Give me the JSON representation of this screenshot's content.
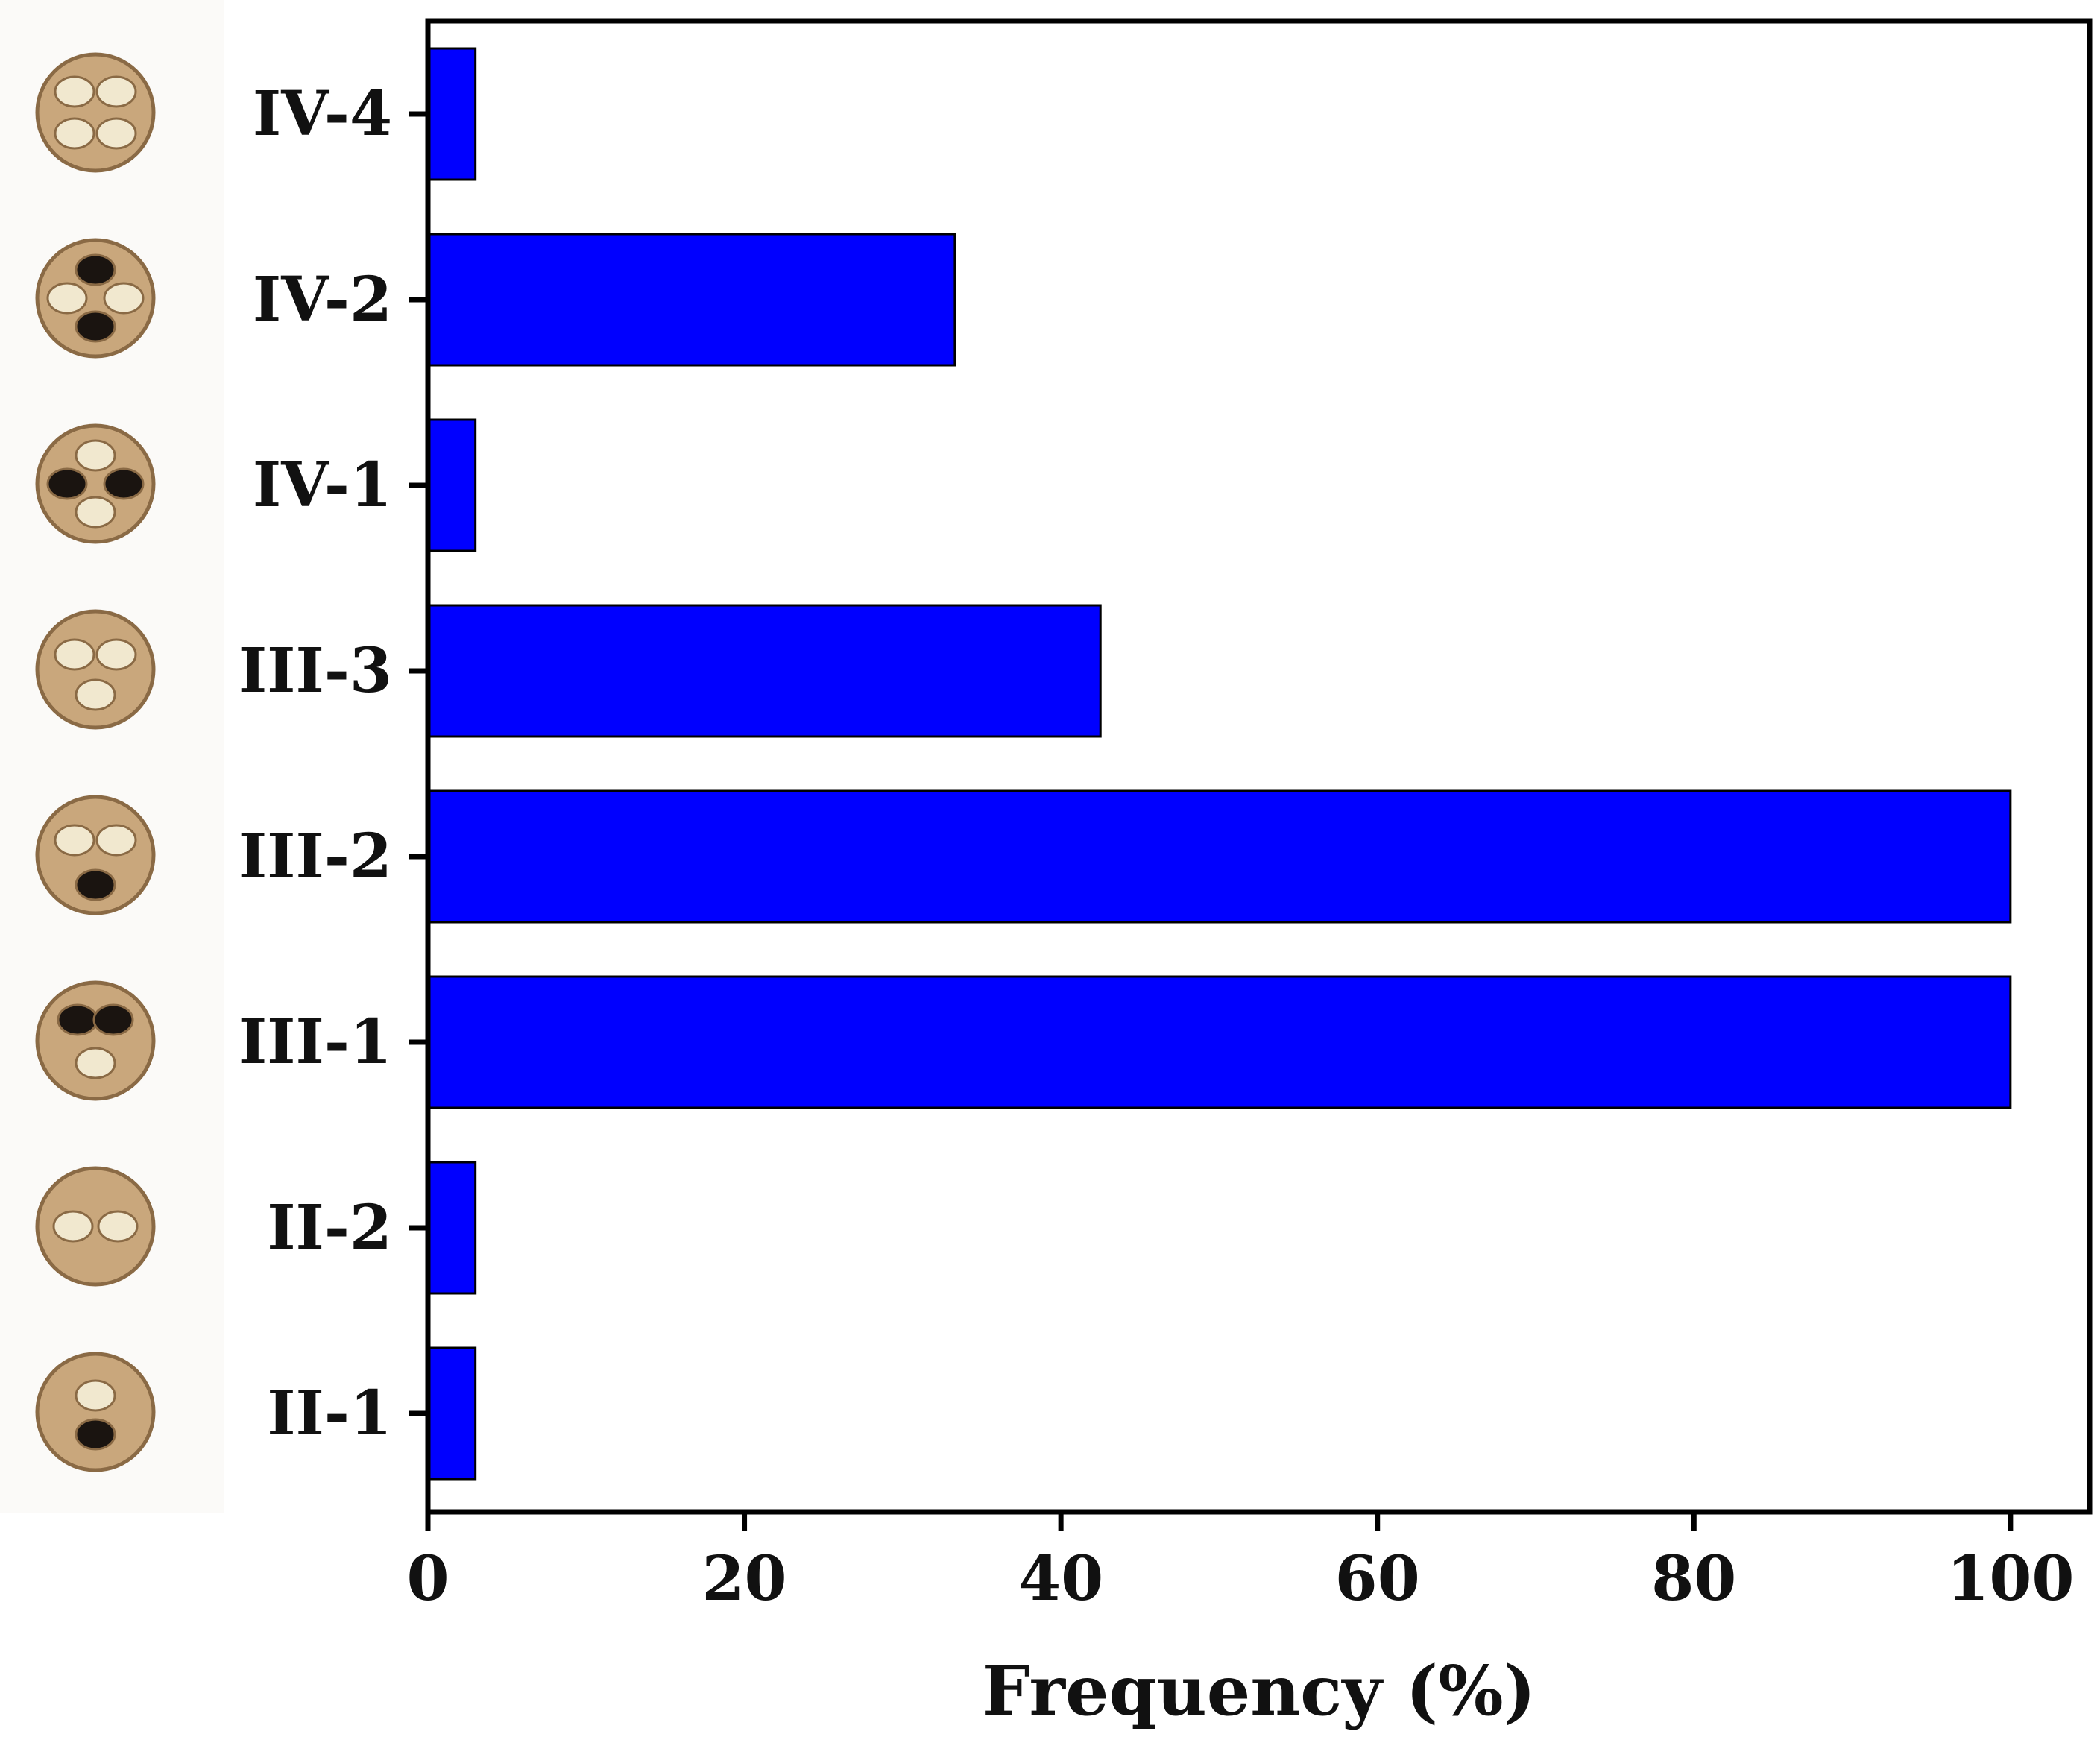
{
  "chart_data": {
    "type": "bar",
    "orientation": "horizontal",
    "categories": [
      "IV-4",
      "IV-2",
      "IV-1",
      "III-3",
      "III-2",
      "III-1",
      "II-2",
      "II-1"
    ],
    "values": [
      3,
      33.3,
      3,
      42.5,
      100,
      100,
      3,
      3
    ],
    "title": "",
    "xlabel": "Frequency (%)",
    "ylabel": "",
    "xlim": [
      0,
      105
    ],
    "xticks": [
      "0",
      "20",
      "40",
      "60",
      "80",
      "100"
    ],
    "grid": false,
    "bar_color": "#0000ff",
    "bar_edge_color": "#000000",
    "category_icons": [
      "seed-section-IV-4-icon",
      "seed-section-IV-2-icon",
      "seed-section-IV-1-icon",
      "seed-section-III-3-icon",
      "seed-section-III-2-icon",
      "seed-section-III-1-icon",
      "seed-section-II-2-icon",
      "seed-section-II-1-icon"
    ],
    "icon_colors": {
      "shell": "#c9a77c",
      "shell_dark": "#8a6a45",
      "kernel": "#f1e8cf",
      "cavity": "#1a1410"
    }
  }
}
